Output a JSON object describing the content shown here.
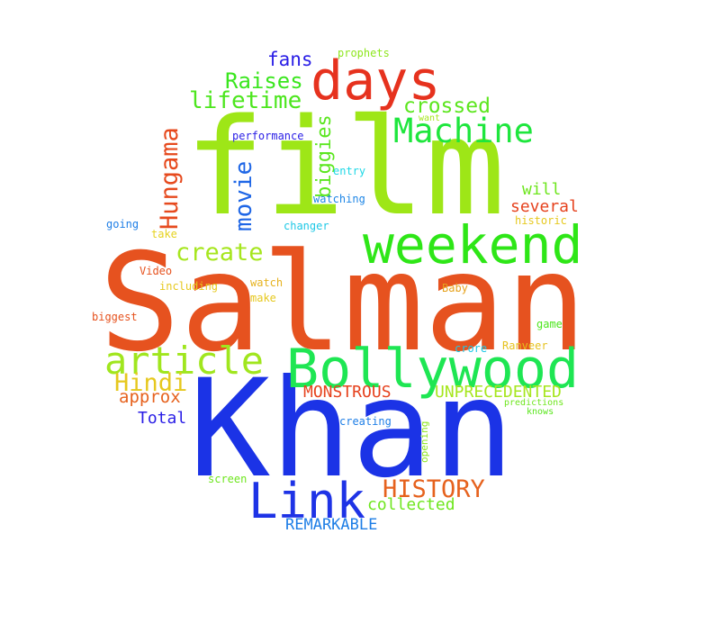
{
  "words": [
    {
      "text": "Salman",
      "color": "#e6521f"
    },
    {
      "text": "Khan",
      "color": "#1b33e6"
    },
    {
      "text": "film",
      "color": "#9ee617"
    },
    {
      "text": "weekend",
      "color": "#2ee617"
    },
    {
      "text": "Bollywood",
      "color": "#1ee653"
    },
    {
      "text": "days",
      "color": "#e6321e"
    },
    {
      "text": "article",
      "color": "#a0e61e"
    },
    {
      "text": "Link",
      "color": "#1e33e6"
    },
    {
      "text": "Machine",
      "color": "#1ee63d"
    },
    {
      "text": "HISTORY",
      "color": "#e6621e"
    },
    {
      "text": "Hungama",
      "color": "#e64a1e"
    },
    {
      "text": "movie",
      "color": "#1e66e6"
    },
    {
      "text": "lifetime",
      "color": "#4de61e"
    },
    {
      "text": "Raises",
      "color": "#3ae61e"
    },
    {
      "text": "create",
      "color": "#a6e61e"
    },
    {
      "text": "biggies",
      "color": "#5ae61e"
    },
    {
      "text": "Hindi",
      "color": "#e6c81e"
    },
    {
      "text": "crossed",
      "color": "#5ce61e"
    },
    {
      "text": "fans",
      "color": "#2a1ee6"
    },
    {
      "text": "MONSTROUS",
      "color": "#e6421e"
    },
    {
      "text": "UNPRECEDENTED",
      "color": "#a6e61e"
    },
    {
      "text": "approx",
      "color": "#e6621e"
    },
    {
      "text": "REMARKABLE",
      "color": "#1e7ee6"
    },
    {
      "text": "collected",
      "color": "#6ee61e"
    },
    {
      "text": "Total",
      "color": "#2a1ee6"
    },
    {
      "text": "several",
      "color": "#e6421e"
    },
    {
      "text": "will",
      "color": "#6ee61e"
    },
    {
      "text": "performance",
      "color": "#2a1ee6"
    },
    {
      "text": "prophets",
      "color": "#8ee61e"
    },
    {
      "text": "entry",
      "color": "#1ed8e6"
    },
    {
      "text": "watching",
      "color": "#1e86e6"
    },
    {
      "text": "changer",
      "color": "#1ec8e6"
    },
    {
      "text": "going",
      "color": "#1e7ee6"
    },
    {
      "text": "take",
      "color": "#e6d21e"
    },
    {
      "text": "Video",
      "color": "#e6521e"
    },
    {
      "text": "including",
      "color": "#e6c81e"
    },
    {
      "text": "watch",
      "color": "#e6b21e"
    },
    {
      "text": "make",
      "color": "#e6c81e"
    },
    {
      "text": "Baby",
      "color": "#e6a21e"
    },
    {
      "text": "biggest",
      "color": "#e6521e"
    },
    {
      "text": "historic",
      "color": "#e6c81e"
    },
    {
      "text": "want",
      "color": "#a6e61e"
    },
    {
      "text": "game",
      "color": "#4ee61e"
    },
    {
      "text": "crore",
      "color": "#1ec8e6"
    },
    {
      "text": "Ranveer",
      "color": "#e6c21e"
    },
    {
      "text": "predictions",
      "color": "#6ee61e"
    },
    {
      "text": "knows",
      "color": "#5ae61e"
    },
    {
      "text": "creating",
      "color": "#1e7ee6"
    },
    {
      "text": "opening",
      "color": "#8ee61e"
    },
    {
      "text": "screen",
      "color": "#6ee61e"
    }
  ]
}
